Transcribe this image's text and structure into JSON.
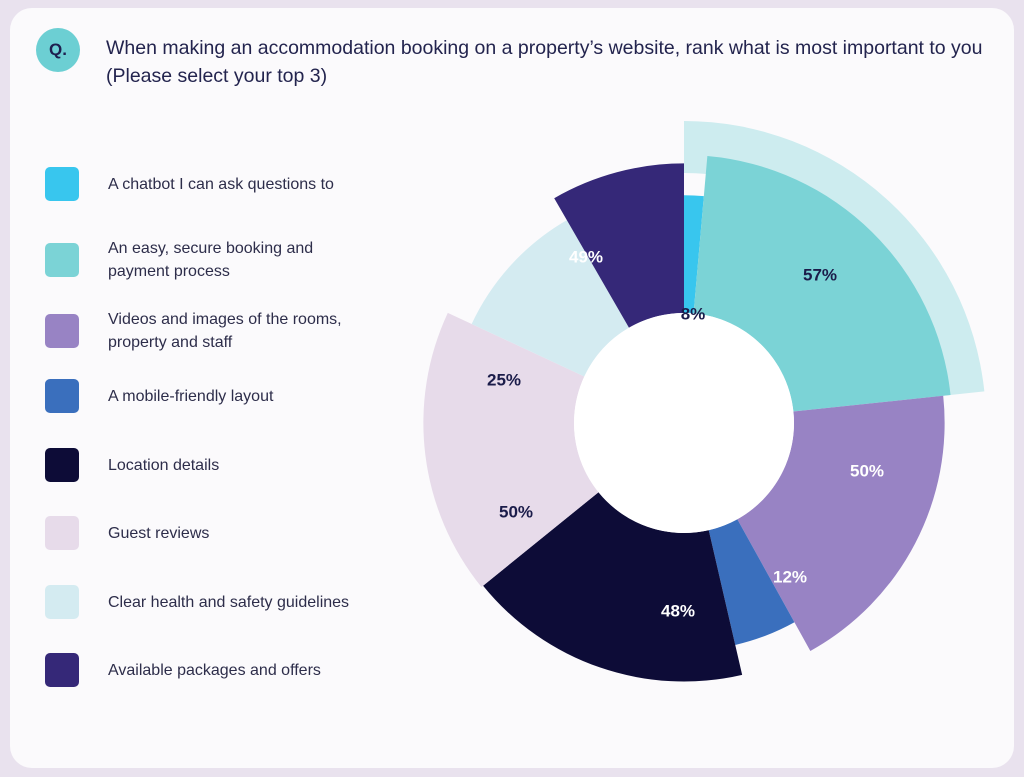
{
  "question": {
    "badge": "Q.",
    "text": "When making an accommodation booking on a property’s website, rank what is most important to you (Please select your top 3)"
  },
  "chart_data": {
    "type": "pie",
    "variant": "donut (radius varies by value)",
    "title": "",
    "legend_position": "left",
    "series": [
      {
        "name": "A chatbot I can ask questions to",
        "value": 8,
        "label": "8%",
        "color": "#38c6ee"
      },
      {
        "name": "An easy, secure booking and payment process",
        "value": 57,
        "label": "57%",
        "color": "#7bd3d6"
      },
      {
        "name": "Videos and images of the rooms, property and staff",
        "value": 50,
        "label": "50%",
        "color": "#9883c4"
      },
      {
        "name": "A mobile-friendly layout",
        "value": 12,
        "label": "12%",
        "color": "#3a6fbd"
      },
      {
        "name": "Location details",
        "value": 48,
        "label": "48%",
        "color": "#0d0c37"
      },
      {
        "name": "Guest reviews",
        "value": 50,
        "label": "50%",
        "color": "#e7dbea"
      },
      {
        "name": "Clear health and safety guidelines",
        "value": 25,
        "label": "25%",
        "color": "#d4ebf1"
      },
      {
        "name": "Available packages and offers",
        "value": 49,
        "label": "49%",
        "color": "#352878"
      }
    ],
    "highlight": "An easy, secure booking and payment process",
    "highlight_color": "#cdecef"
  }
}
